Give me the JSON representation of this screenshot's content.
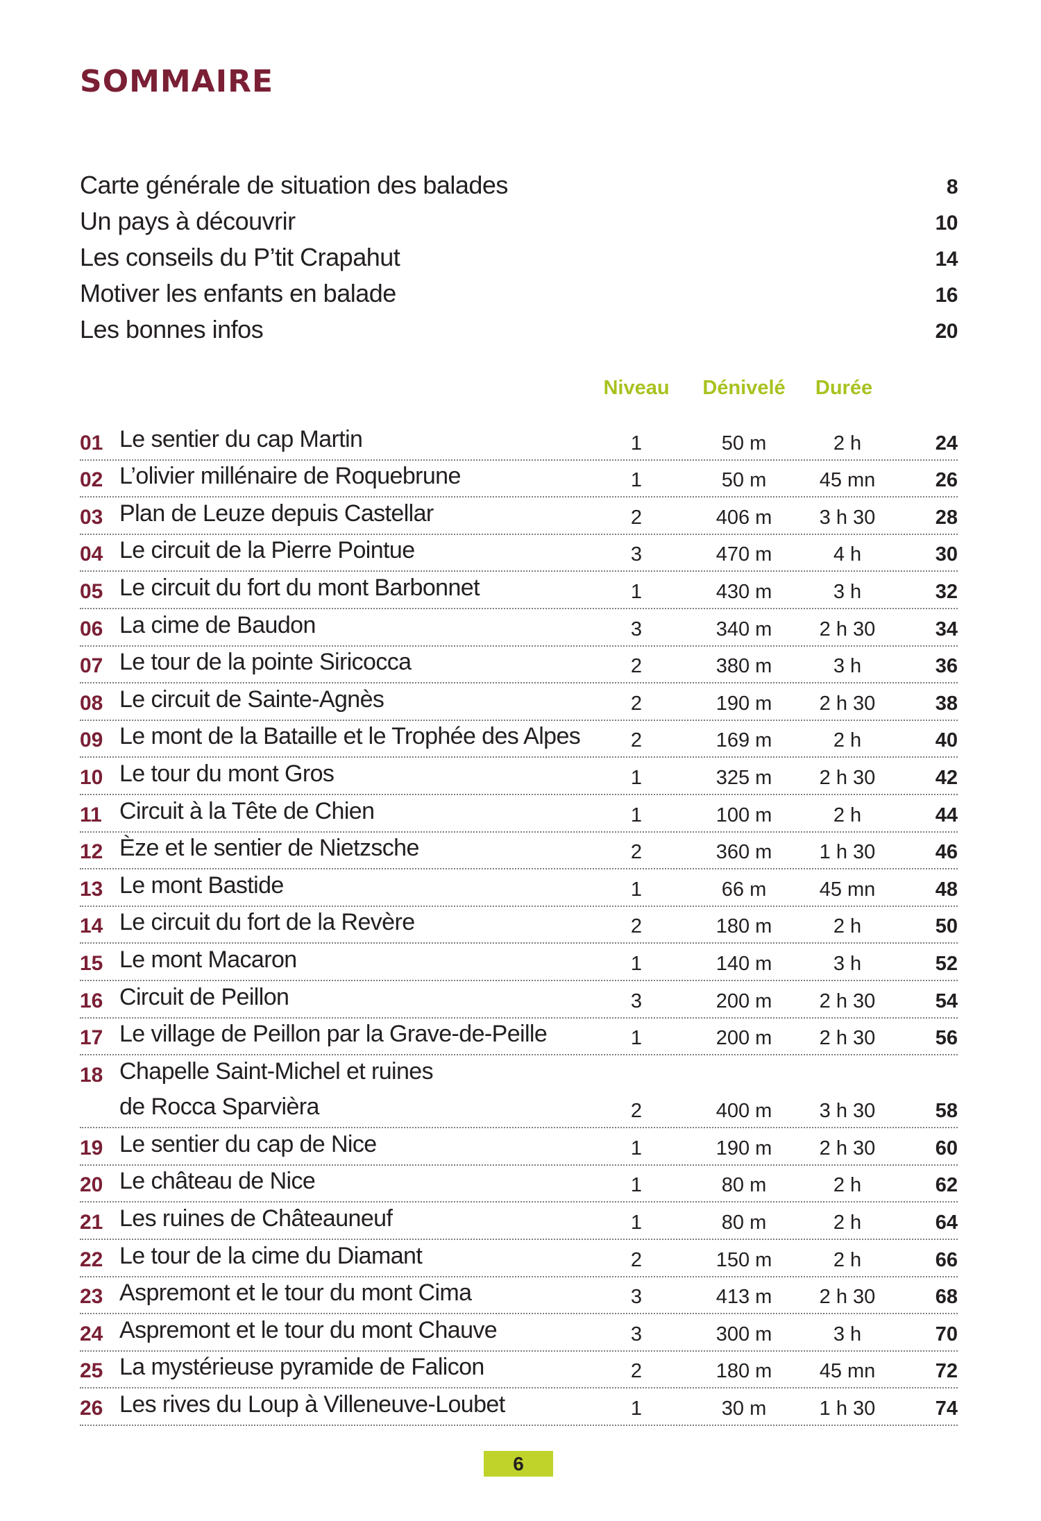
{
  "title": "SOMMAIRE",
  "intro": [
    {
      "label": "Carte générale de situation des balades",
      "page": "8"
    },
    {
      "label": "Un pays à découvrir",
      "page": "10"
    },
    {
      "label": "Les conseils du P’tit Crapahut",
      "page": "14"
    },
    {
      "label": "Motiver les enfants en balade",
      "page": "16"
    },
    {
      "label": "Les bonnes infos",
      "page": "20"
    }
  ],
  "columns": {
    "level": "Niveau",
    "elevation": "Dénivelé",
    "duration": "Durée"
  },
  "walks": [
    {
      "num": "01",
      "name": "Le sentier du cap Martin",
      "level": "1",
      "elevation": "50 m",
      "duration": "2 h",
      "page": "24"
    },
    {
      "num": "02",
      "name": "L’olivier millénaire de Roquebrune",
      "level": "1",
      "elevation": "50 m",
      "duration": "45 mn",
      "page": "26"
    },
    {
      "num": "03",
      "name": "Plan de Leuze depuis Castellar",
      "level": "2",
      "elevation": "406 m",
      "duration": "3 h 30",
      "page": "28"
    },
    {
      "num": "04",
      "name": "Le circuit de la Pierre Pointue",
      "level": "3",
      "elevation": "470 m",
      "duration": "4 h",
      "page": "30"
    },
    {
      "num": "05",
      "name": "Le circuit du fort du mont Barbonnet",
      "level": "1",
      "elevation": "430 m",
      "duration": "3 h",
      "page": "32"
    },
    {
      "num": "06",
      "name": "La cime de Baudon",
      "level": "3",
      "elevation": "340 m",
      "duration": "2 h 30",
      "page": "34"
    },
    {
      "num": "07",
      "name": "Le tour de la pointe Siricocca",
      "level": "2",
      "elevation": "380 m",
      "duration": "3 h",
      "page": "36"
    },
    {
      "num": "08",
      "name": "Le circuit de Sainte-Agnès",
      "level": "2",
      "elevation": "190 m",
      "duration": "2 h 30",
      "page": "38"
    },
    {
      "num": "09",
      "name": "Le mont de la Bataille et le Trophée des Alpes",
      "level": "2",
      "elevation": "169 m",
      "duration": "2 h",
      "page": "40"
    },
    {
      "num": "10",
      "name": "Le tour du mont Gros",
      "level": "1",
      "elevation": "325 m",
      "duration": "2 h 30",
      "page": "42"
    },
    {
      "num": "11",
      "name": "Circuit à la Tête de Chien",
      "level": "1",
      "elevation": "100 m",
      "duration": "2 h",
      "page": "44"
    },
    {
      "num": "12",
      "name": "Èze et le sentier de Nietzsche",
      "level": "2",
      "elevation": "360 m",
      "duration": "1 h 30",
      "page": "46"
    },
    {
      "num": "13",
      "name": "Le mont Bastide",
      "level": "1",
      "elevation": "66 m",
      "duration": "45 mn",
      "page": "48"
    },
    {
      "num": "14",
      "name": "Le circuit du fort de la Revère",
      "level": "2",
      "elevation": "180 m",
      "duration": "2 h",
      "page": "50"
    },
    {
      "num": "15",
      "name": "Le mont Macaron",
      "level": "1",
      "elevation": "140 m",
      "duration": "3 h",
      "page": "52"
    },
    {
      "num": "16",
      "name": "Circuit de Peillon",
      "level": "3",
      "elevation": "200 m",
      "duration": "2 h 30",
      "page": "54"
    },
    {
      "num": "17",
      "name": "Le village de Peillon par la Grave-de-Peille",
      "level": "1",
      "elevation": "200 m",
      "duration": "2 h 30",
      "page": "56"
    },
    {
      "num": "18",
      "name": "Chapelle Saint-Michel et ruines",
      "name2": "de Rocca Sparvièra",
      "level": "2",
      "elevation": "400 m",
      "duration": "3 h 30",
      "page": "58"
    },
    {
      "num": "19",
      "name": "Le sentier du cap de Nice",
      "level": "1",
      "elevation": "190 m",
      "duration": "2 h 30",
      "page": "60"
    },
    {
      "num": "20",
      "name": "Le château de Nice",
      "level": "1",
      "elevation": "80 m",
      "duration": "2 h",
      "page": "62"
    },
    {
      "num": "21",
      "name": "Les ruines de Châteauneuf",
      "level": "1",
      "elevation": "80 m",
      "duration": "2 h",
      "page": "64"
    },
    {
      "num": "22",
      "name": "Le tour de la cime du Diamant",
      "level": "2",
      "elevation": "150 m",
      "duration": "2 h",
      "page": "66"
    },
    {
      "num": "23",
      "name": "Aspremont et le tour du mont Cima",
      "level": "3",
      "elevation": "413 m",
      "duration": "2 h 30",
      "page": "68"
    },
    {
      "num": "24",
      "name": "Aspremont et le tour du mont Chauve",
      "level": "3",
      "elevation": "300 m",
      "duration": "3 h",
      "page": "70"
    },
    {
      "num": "25",
      "name": "La mystérieuse pyramide de Falicon",
      "level": "2",
      "elevation": "180 m",
      "duration": "45 mn",
      "page": "72"
    },
    {
      "num": "26",
      "name": "Les rives du Loup à Villeneuve-Loubet",
      "level": "1",
      "elevation": "30 m",
      "duration": "1 h 30",
      "page": "74"
    }
  ],
  "page_number": "6",
  "colors": {
    "title": "#7a1f35",
    "accent": "#a9c21f",
    "page_badge": "#bfd32b"
  }
}
